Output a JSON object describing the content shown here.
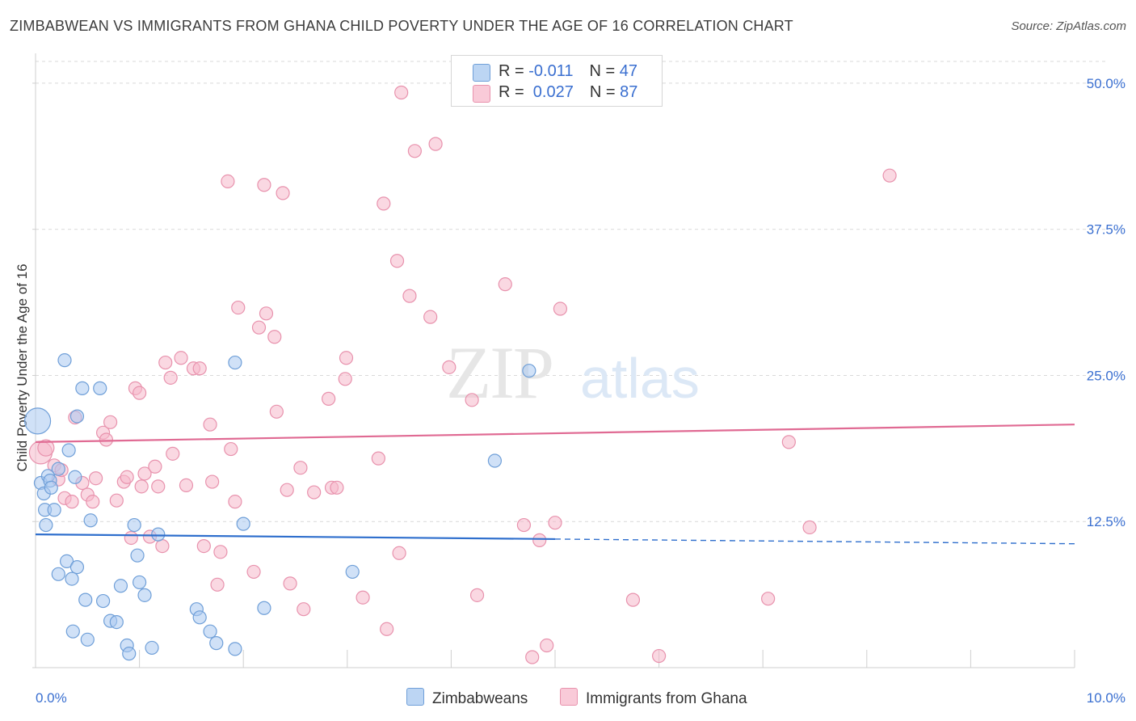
{
  "title": "ZIMBABWEAN VS IMMIGRANTS FROM GHANA CHILD POVERTY UNDER THE AGE OF 16 CORRELATION CHART",
  "source": "Source: ZipAtlas.com",
  "watermark": {
    "zip": "ZIP",
    "atlas": "atlas"
  },
  "legend": {
    "rows": [
      {
        "r_label": "R = ",
        "r_value": "-0.011",
        "n_label": "N = ",
        "n_value": "47"
      },
      {
        "r_label": "R = ",
        "r_value": " 0.027",
        "n_label": "N = ",
        "n_value": "87"
      }
    ]
  },
  "bottom_legend": [
    "Zimbabweans",
    "Immigrants from Ghana"
  ],
  "colors": {
    "blue_fill": "#a9c8f0",
    "blue_stroke": "#6f9fd8",
    "blue_line": "#2f6fcd",
    "pink_fill": "#f6b8cb",
    "pink_stroke": "#e892ad",
    "pink_line": "#e06a93",
    "tick_label": "#3a6fd0",
    "grid": "#d9d9d9"
  },
  "chart_data": {
    "type": "scatter",
    "title": "ZIMBABWEAN VS IMMIGRANTS FROM GHANA CHILD POVERTY UNDER THE AGE OF 16 CORRELATION CHART",
    "xlabel": "",
    "ylabel": "Child Poverty Under the Age of 16",
    "xlim": [
      0,
      10
    ],
    "ylim": [
      0,
      52
    ],
    "x_tick_labels": [
      "0.0%",
      "10.0%"
    ],
    "y_ticks": [
      12.5,
      25.0,
      37.5,
      50.0
    ],
    "y_tick_labels": [
      "12.5%",
      "25.0%",
      "37.5%",
      "50.0%"
    ],
    "grid": true,
    "legend_position": "top-center",
    "series": [
      {
        "name": "Zimbabweans",
        "R": -0.011,
        "N": 47,
        "trend": {
          "x": [
            0.0,
            10.0
          ],
          "y": [
            11.4,
            10.6
          ],
          "solid_until": 5.0
        },
        "points": [
          [
            0.02,
            21.1,
            16
          ],
          [
            0.05,
            15.8,
            8
          ],
          [
            0.08,
            14.9,
            8
          ],
          [
            0.09,
            13.5,
            8
          ],
          [
            0.1,
            12.2,
            8
          ],
          [
            0.12,
            16.4,
            8
          ],
          [
            0.14,
            16.0,
            8
          ],
          [
            0.15,
            15.4,
            8
          ],
          [
            0.18,
            13.5,
            8
          ],
          [
            0.22,
            17.0,
            8
          ],
          [
            0.28,
            26.3,
            8
          ],
          [
            0.32,
            18.6,
            8
          ],
          [
            0.38,
            16.3,
            8
          ],
          [
            0.4,
            21.5,
            8
          ],
          [
            0.45,
            23.9,
            8
          ],
          [
            0.62,
            23.9,
            8
          ],
          [
            0.3,
            9.1,
            8
          ],
          [
            0.4,
            8.6,
            8
          ],
          [
            0.22,
            8.0,
            8
          ],
          [
            0.35,
            7.6,
            8
          ],
          [
            0.48,
            5.8,
            8
          ],
          [
            0.53,
            12.6,
            8
          ],
          [
            0.65,
            5.7,
            8
          ],
          [
            0.72,
            4.0,
            8
          ],
          [
            0.78,
            3.9,
            8
          ],
          [
            0.82,
            7.0,
            8
          ],
          [
            0.88,
            1.9,
            8
          ],
          [
            0.9,
            1.2,
            8
          ],
          [
            0.95,
            12.2,
            8
          ],
          [
            0.98,
            9.6,
            8
          ],
          [
            1.0,
            7.3,
            8
          ],
          [
            1.05,
            6.2,
            8
          ],
          [
            1.12,
            1.7,
            8
          ],
          [
            1.18,
            11.4,
            8
          ],
          [
            1.55,
            5.0,
            8
          ],
          [
            1.58,
            4.3,
            8
          ],
          [
            1.68,
            3.1,
            8
          ],
          [
            1.74,
            2.1,
            8
          ],
          [
            1.92,
            1.6,
            8
          ],
          [
            1.92,
            26.1,
            8
          ],
          [
            2.0,
            12.3,
            8
          ],
          [
            2.2,
            5.1,
            8
          ],
          [
            3.05,
            8.2,
            8
          ],
          [
            4.42,
            17.7,
            8
          ],
          [
            4.75,
            25.4,
            8
          ],
          [
            0.36,
            3.1,
            8
          ],
          [
            0.5,
            2.4,
            8
          ]
        ]
      },
      {
        "name": "Immigrants from Ghana",
        "R": 0.027,
        "N": 87,
        "trend": {
          "x": [
            0.0,
            10.0
          ],
          "y": [
            19.3,
            20.8
          ]
        },
        "points": [
          [
            0.05,
            18.4,
            14
          ],
          [
            0.1,
            18.8,
            10
          ],
          [
            0.18,
            17.3,
            8
          ],
          [
            0.22,
            16.1,
            8
          ],
          [
            0.25,
            16.9,
            8
          ],
          [
            0.28,
            14.5,
            8
          ],
          [
            0.35,
            14.2,
            8
          ],
          [
            0.38,
            21.4,
            8
          ],
          [
            0.45,
            15.8,
            8
          ],
          [
            0.5,
            14.8,
            8
          ],
          [
            0.55,
            14.2,
            8
          ],
          [
            0.58,
            16.2,
            8
          ],
          [
            0.65,
            20.1,
            8
          ],
          [
            0.68,
            19.5,
            8
          ],
          [
            0.72,
            21.0,
            8
          ],
          [
            0.78,
            14.3,
            8
          ],
          [
            0.85,
            15.9,
            8
          ],
          [
            0.88,
            16.3,
            8
          ],
          [
            0.92,
            11.1,
            8
          ],
          [
            0.96,
            23.9,
            8
          ],
          [
            1.0,
            23.5,
            8
          ],
          [
            1.02,
            15.5,
            8
          ],
          [
            1.05,
            16.6,
            8
          ],
          [
            1.1,
            11.2,
            8
          ],
          [
            1.15,
            17.2,
            8
          ],
          [
            1.18,
            15.5,
            8
          ],
          [
            1.22,
            10.4,
            8
          ],
          [
            1.25,
            26.1,
            8
          ],
          [
            1.3,
            24.8,
            8
          ],
          [
            1.32,
            18.3,
            8
          ],
          [
            1.4,
            26.5,
            8
          ],
          [
            1.45,
            15.6,
            8
          ],
          [
            1.52,
            25.6,
            8
          ],
          [
            1.58,
            25.6,
            8
          ],
          [
            1.62,
            10.4,
            8
          ],
          [
            1.68,
            20.8,
            8
          ],
          [
            1.7,
            15.9,
            8
          ],
          [
            1.75,
            7.1,
            8
          ],
          [
            1.78,
            9.9,
            8
          ],
          [
            1.85,
            41.6,
            8
          ],
          [
            1.88,
            18.7,
            8
          ],
          [
            1.92,
            14.2,
            8
          ],
          [
            1.95,
            30.8,
            8
          ],
          [
            2.1,
            8.2,
            8
          ],
          [
            2.15,
            29.1,
            8
          ],
          [
            2.2,
            41.3,
            8
          ],
          [
            2.22,
            30.3,
            8
          ],
          [
            2.3,
            28.3,
            8
          ],
          [
            2.32,
            21.9,
            8
          ],
          [
            2.38,
            40.6,
            8
          ],
          [
            2.42,
            15.2,
            8
          ],
          [
            2.45,
            7.2,
            8
          ],
          [
            2.55,
            17.1,
            8
          ],
          [
            2.58,
            5.0,
            8
          ],
          [
            2.68,
            15.0,
            8
          ],
          [
            2.82,
            23.0,
            8
          ],
          [
            2.85,
            15.4,
            8
          ],
          [
            2.9,
            15.4,
            8
          ],
          [
            2.98,
            24.7,
            8
          ],
          [
            2.99,
            26.5,
            8
          ],
          [
            3.15,
            6.0,
            8
          ],
          [
            3.3,
            17.9,
            8
          ],
          [
            3.35,
            39.7,
            8
          ],
          [
            3.38,
            3.3,
            8
          ],
          [
            3.48,
            34.8,
            8
          ],
          [
            3.5,
            9.8,
            8
          ],
          [
            3.52,
            49.2,
            8
          ],
          [
            3.6,
            31.8,
            8
          ],
          [
            3.65,
            44.2,
            8
          ],
          [
            3.8,
            30.0,
            8
          ],
          [
            3.85,
            44.8,
            8
          ],
          [
            3.98,
            25.7,
            8
          ],
          [
            4.2,
            22.9,
            8
          ],
          [
            4.25,
            6.2,
            8
          ],
          [
            4.52,
            32.8,
            8
          ],
          [
            4.7,
            12.2,
            8
          ],
          [
            4.78,
            0.9,
            8
          ],
          [
            4.85,
            10.9,
            8
          ],
          [
            4.92,
            1.9,
            8
          ],
          [
            5.0,
            12.4,
            8
          ],
          [
            5.05,
            30.7,
            8
          ],
          [
            5.75,
            5.8,
            8
          ],
          [
            6.0,
            1.0,
            8
          ],
          [
            7.05,
            5.9,
            8
          ],
          [
            7.25,
            19.3,
            8
          ],
          [
            7.45,
            12.0,
            8
          ],
          [
            8.22,
            42.1,
            8
          ]
        ]
      }
    ]
  }
}
